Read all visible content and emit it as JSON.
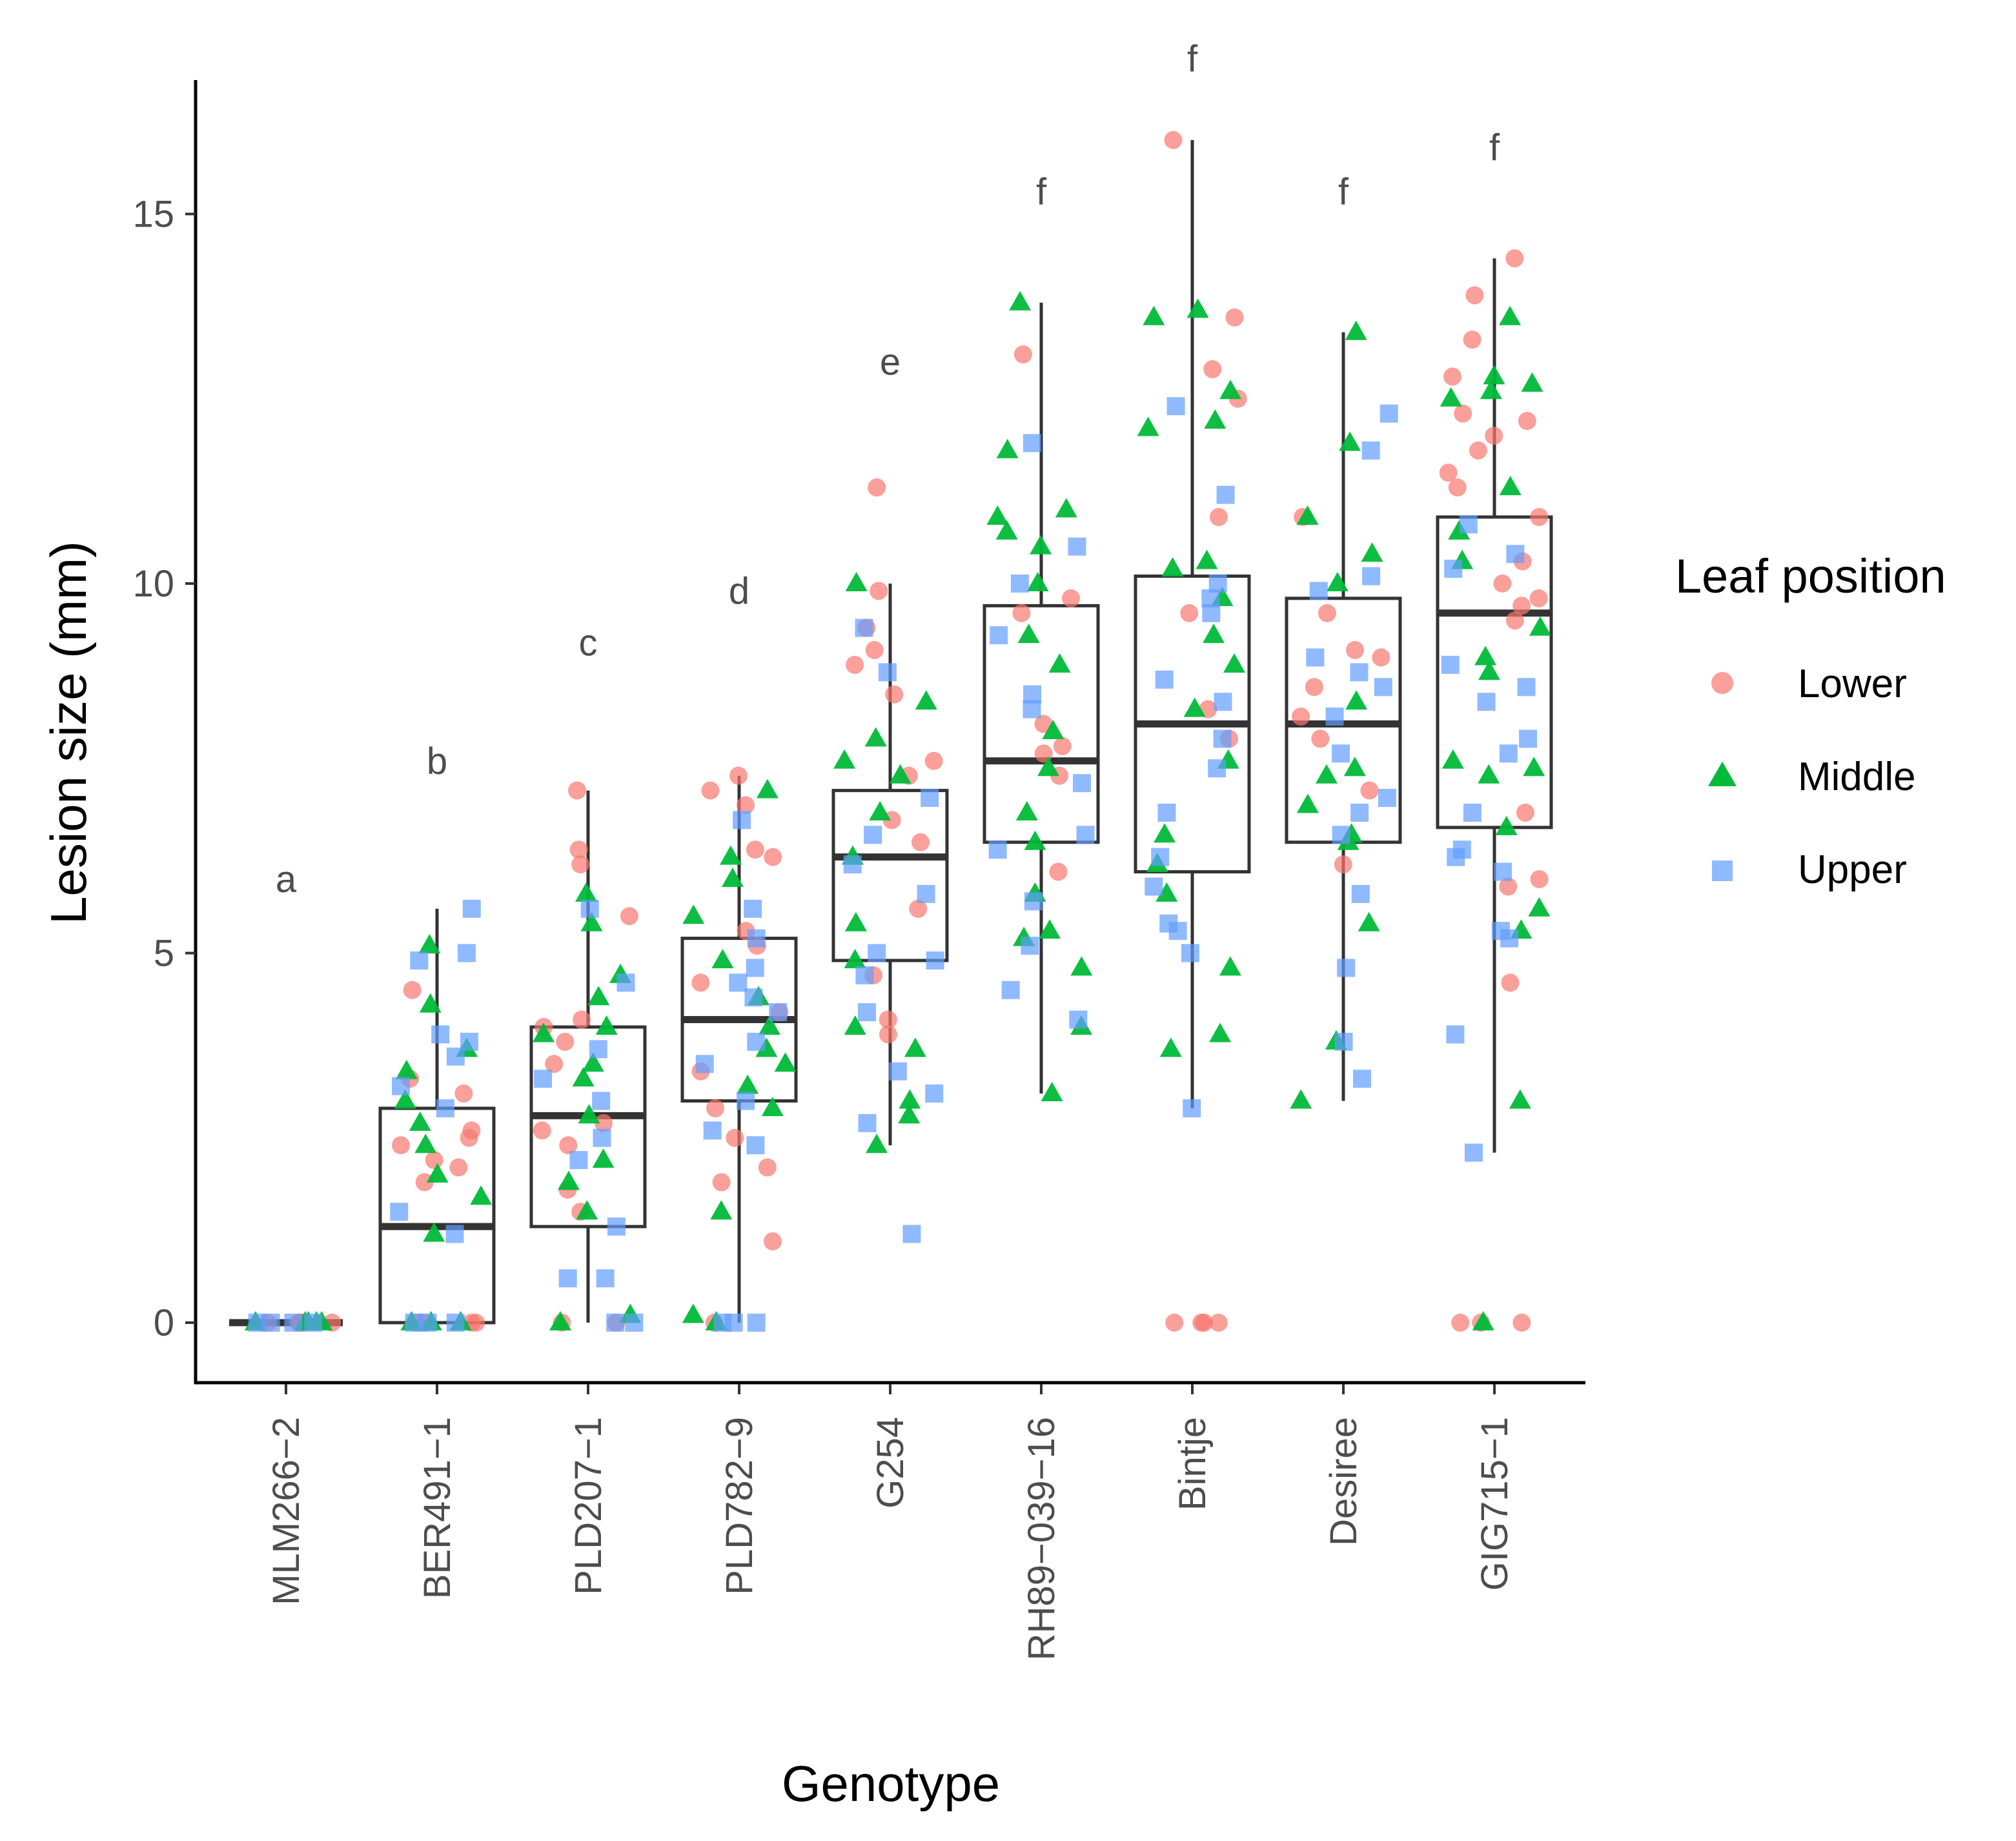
{
  "chart_data": {
    "type": "box",
    "xlabel": "Genotype",
    "ylabel": "Lesion size (mm)",
    "ylim": [
      -0.8,
      16.8
    ],
    "yticks": [
      0,
      5,
      10,
      15
    ],
    "categories": [
      "MLM266−2",
      "BER491−1",
      "PLD207−1",
      "PLD782−9",
      "G254",
      "RH89−039−16",
      "Bintje",
      "Desiree",
      "GIG715−1"
    ],
    "significance_letters": [
      {
        "category": "MLM266−2",
        "letter": "a",
        "y": 6.0
      },
      {
        "category": "BER491−1",
        "letter": "b",
        "y": 7.6
      },
      {
        "category": "PLD207−1",
        "letter": "c",
        "y": 9.2
      },
      {
        "category": "PLD782−9",
        "letter": "d",
        "y": 9.9
      },
      {
        "category": "G254",
        "letter": "e",
        "y": 13.0
      },
      {
        "category": "RH89−039−16",
        "letter": "f",
        "y": 15.3
      },
      {
        "category": "Bintje",
        "letter": "f",
        "y": 17.1
      },
      {
        "category": "Desiree",
        "letter": "f",
        "y": 15.3
      },
      {
        "category": "GIG715−1",
        "letter": "f",
        "y": 15.9
      }
    ],
    "boxes": [
      {
        "category": "MLM266−2",
        "min": 0,
        "q1": 0,
        "median": 0,
        "q3": 0,
        "max": 0
      },
      {
        "category": "BER491−1",
        "min": 0,
        "q1": 0,
        "median": 1.3,
        "q3": 2.9,
        "max": 5.6
      },
      {
        "category": "PLD207−1",
        "min": 0,
        "q1": 1.3,
        "median": 2.8,
        "q3": 4.0,
        "max": 7.2
      },
      {
        "category": "PLD782−9",
        "min": 0,
        "q1": 3.0,
        "median": 4.1,
        "q3": 5.2,
        "max": 7.4
      },
      {
        "category": "G254",
        "min": 2.4,
        "q1": 4.9,
        "median": 6.3,
        "q3": 7.2,
        "max": 10.0
      },
      {
        "category": "RH89−039−16",
        "min": 3.1,
        "q1": 6.5,
        "median": 7.6,
        "q3": 9.7,
        "max": 13.8
      },
      {
        "category": "Bintje",
        "min": 2.9,
        "q1": 6.1,
        "median": 8.1,
        "q3": 10.1,
        "max": 16.0
      },
      {
        "category": "Desiree",
        "min": 3.0,
        "q1": 6.5,
        "median": 8.1,
        "q3": 9.8,
        "max": 13.4
      },
      {
        "category": "GIG715−1",
        "min": 2.3,
        "q1": 6.7,
        "median": 9.6,
        "q3": 10.9,
        "max": 14.4
      }
    ],
    "legend": {
      "title": "Leaf position",
      "entries": [
        {
          "label": "Lower",
          "shape": "circle",
          "color": "#F8766D"
        },
        {
          "label": "Middle",
          "shape": "triangle",
          "color": "#00BA38"
        },
        {
          "label": "Upper",
          "shape": "square",
          "color": "#619CFF"
        }
      ]
    },
    "points": [
      {
        "category": "MLM266−2",
        "position": "Lower",
        "values": [
          0,
          0,
          0,
          0,
          0,
          0
        ]
      },
      {
        "category": "MLM266−2",
        "position": "Middle",
        "values": [
          0,
          0,
          0,
          0,
          0
        ]
      },
      {
        "category": "MLM266−2",
        "position": "Upper",
        "values": [
          0,
          0,
          0,
          0
        ]
      },
      {
        "category": "BER491−1",
        "position": "Lower",
        "values": [
          4.5,
          3.3,
          3.1,
          2.6,
          2.5,
          2.4,
          2.2,
          2.1,
          1.9,
          0,
          0,
          0,
          0
        ]
      },
      {
        "category": "BER491−1",
        "position": "Middle",
        "values": [
          5.1,
          4.3,
          3.7,
          3.4,
          3.0,
          2.7,
          2.4,
          2.0,
          1.7,
          1.2,
          0,
          0,
          0
        ]
      },
      {
        "category": "BER491−1",
        "position": "Upper",
        "values": [
          5.6,
          5.0,
          4.9,
          3.9,
          3.8,
          3.6,
          3.2,
          2.9,
          1.5,
          1.2,
          0,
          0,
          0
        ]
      },
      {
        "category": "PLD207−1",
        "position": "Lower",
        "values": [
          7.2,
          6.4,
          6.2,
          5.5,
          4.1,
          4.0,
          3.8,
          3.5,
          2.7,
          2.6,
          2.4,
          1.8,
          1.5,
          0,
          0
        ]
      },
      {
        "category": "PLD207−1",
        "position": "Middle",
        "values": [
          5.8,
          5.4,
          4.7,
          4.4,
          4.0,
          3.9,
          3.5,
          3.3,
          2.8,
          2.2,
          1.9,
          1.5,
          0.1,
          0
        ]
      },
      {
        "category": "PLD207−1",
        "position": "Upper",
        "values": [
          5.6,
          4.6,
          3.7,
          3.3,
          3.0,
          2.5,
          2.2,
          1.3,
          0.6,
          0.6,
          0,
          0
        ]
      },
      {
        "category": "PLD782−9",
        "position": "Lower",
        "values": [
          7.4,
          7.2,
          7.0,
          6.4,
          6.3,
          5.3,
          5.1,
          4.6,
          4.2,
          3.4,
          2.9,
          2.5,
          2.1,
          1.9,
          1.1,
          0
        ]
      },
      {
        "category": "PLD782−9",
        "position": "Middle",
        "values": [
          7.2,
          6.3,
          6.0,
          5.5,
          4.9,
          4.4,
          4.0,
          3.7,
          3.5,
          3.2,
          2.9,
          1.5,
          0.1,
          0
        ]
      },
      {
        "category": "PLD782−9",
        "position": "Upper",
        "values": [
          6.8,
          5.6,
          5.2,
          4.8,
          4.6,
          4.4,
          4.2,
          3.8,
          3.5,
          3.0,
          2.6,
          2.4,
          0,
          0,
          0
        ]
      },
      {
        "category": "G254",
        "position": "Lower",
        "values": [
          11.3,
          9.9,
          9.4,
          9.1,
          8.9,
          8.5,
          7.6,
          7.4,
          6.8,
          6.5,
          5.6,
          4.7,
          4.1,
          3.9
        ]
      },
      {
        "category": "G254",
        "position": "Middle",
        "values": [
          10.0,
          8.4,
          7.9,
          7.6,
          7.4,
          6.9,
          6.3,
          5.4,
          4.9,
          4.0,
          3.7,
          3.0,
          2.8,
          2.4
        ]
      },
      {
        "category": "G254",
        "position": "Upper",
        "values": [
          9.4,
          8.8,
          7.1,
          6.6,
          6.2,
          5.8,
          5.0,
          4.9,
          4.7,
          4.2,
          3.4,
          3.1,
          2.7,
          1.2
        ]
      },
      {
        "category": "RH89−039−16",
        "position": "Lower",
        "values": [
          13.1,
          9.8,
          9.6,
          8.1,
          7.8,
          7.7,
          7.4,
          6.1
        ]
      },
      {
        "category": "RH89−039−16",
        "position": "Middle",
        "values": [
          13.8,
          11.8,
          11.0,
          10.9,
          10.7,
          10.5,
          10.0,
          9.3,
          8.9,
          8.0,
          7.5,
          6.9,
          6.5,
          5.8,
          5.3,
          5.2,
          4.8,
          4.0,
          3.1
        ]
      },
      {
        "category": "RH89−039−16",
        "position": "Upper",
        "values": [
          11.9,
          10.5,
          10.0,
          9.3,
          8.5,
          8.3,
          7.3,
          6.6,
          6.4,
          5.7,
          5.1,
          4.5,
          4.1
        ]
      },
      {
        "category": "Bintje",
        "position": "Lower",
        "values": [
          16.0,
          13.6,
          12.9,
          12.5,
          10.9,
          9.6,
          8.3,
          7.9,
          0,
          0,
          0,
          0
        ]
      },
      {
        "category": "Bintje",
        "position": "Middle",
        "values": [
          13.7,
          13.6,
          12.6,
          12.2,
          12.1,
          10.3,
          10.2,
          9.8,
          9.3,
          8.9,
          8.3,
          7.6,
          6.6,
          6.2,
          5.8,
          4.8,
          3.9,
          3.7
        ]
      },
      {
        "category": "Bintje",
        "position": "Upper",
        "values": [
          12.4,
          11.2,
          10.0,
          9.8,
          9.6,
          8.7,
          8.4,
          7.9,
          7.5,
          6.9,
          6.3,
          5.9,
          5.4,
          5.3,
          5.0,
          2.9
        ]
      },
      {
        "category": "Desiree",
        "position": "Lower",
        "values": [
          10.9,
          9.6,
          9.1,
          9.0,
          8.6,
          8.2,
          7.9,
          7.2,
          6.2
        ]
      },
      {
        "category": "Desiree",
        "position": "Middle",
        "values": [
          13.4,
          11.9,
          10.9,
          10.4,
          10.0,
          8.4,
          7.5,
          7.4,
          7.0,
          6.6,
          6.5,
          5.4,
          3.8,
          3.0
        ]
      },
      {
        "category": "Desiree",
        "position": "Upper",
        "values": [
          12.3,
          11.8,
          10.1,
          9.9,
          9.0,
          8.8,
          8.6,
          8.2,
          7.7,
          7.1,
          6.9,
          6.6,
          5.8,
          4.8,
          3.8,
          3.3
        ]
      },
      {
        "category": "GIG715−1",
        "position": "Lower",
        "values": [
          14.4,
          13.9,
          13.3,
          12.8,
          12.3,
          12.2,
          12.0,
          11.8,
          11.5,
          11.3,
          10.9,
          10.3,
          10.0,
          9.8,
          9.7,
          9.5,
          6.9,
          6.0,
          5.9,
          4.6,
          0,
          0,
          0
        ]
      },
      {
        "category": "GIG715−1",
        "position": "Middle",
        "values": [
          13.6,
          12.8,
          12.7,
          12.6,
          12.5,
          11.3,
          10.7,
          10.3,
          9.4,
          9.0,
          8.8,
          7.6,
          7.5,
          7.4,
          6.7,
          5.6,
          5.3,
          3.0,
          0
        ]
      },
      {
        "category": "GIG715−1",
        "position": "Upper",
        "values": [
          10.8,
          10.4,
          10.2,
          8.9,
          8.6,
          8.4,
          7.9,
          7.7,
          6.9,
          6.4,
          6.3,
          6.1,
          5.3,
          5.2,
          3.9,
          2.3
        ]
      }
    ]
  }
}
